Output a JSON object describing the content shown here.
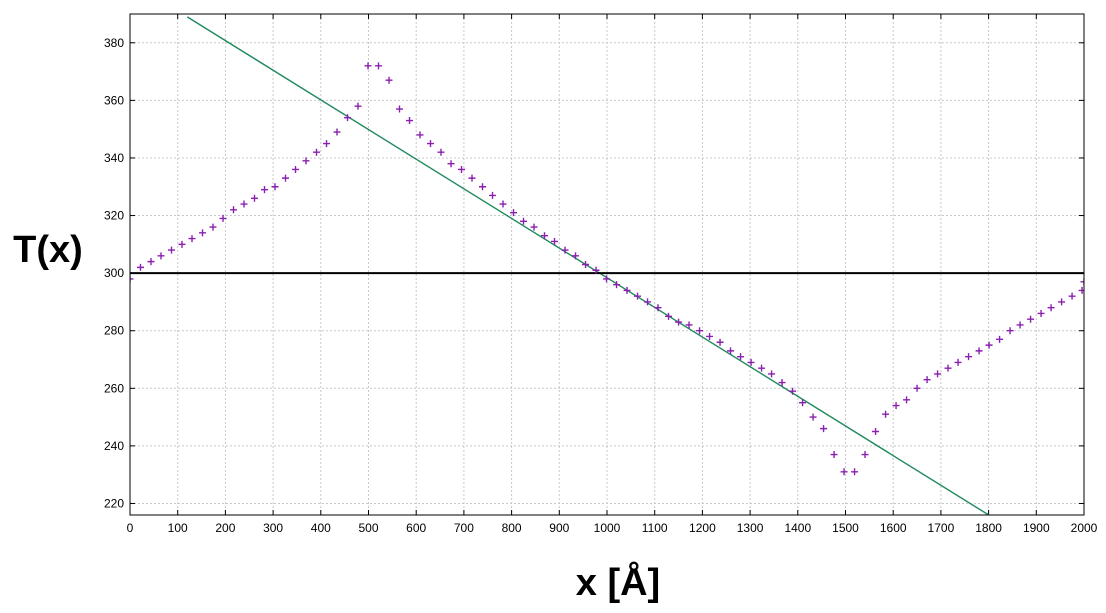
{
  "chart_data": {
    "type": "scatter",
    "title": "",
    "xlabel": "x [Å]",
    "ylabel": "T(x)",
    "xlim": [
      0,
      2000
    ],
    "ylim": [
      216,
      390
    ],
    "grid": true,
    "x_ticks": [
      0,
      100,
      200,
      300,
      400,
      500,
      600,
      700,
      800,
      900,
      1000,
      1100,
      1200,
      1300,
      1400,
      1500,
      1600,
      1700,
      1800,
      1900,
      2000
    ],
    "y_ticks": [
      220,
      240,
      260,
      280,
      300,
      320,
      340,
      360,
      380
    ],
    "series": [
      {
        "marker": "+",
        "color": "#8b1fb0",
        "points": [
          [
            0,
            298
          ],
          [
            22,
            302
          ],
          [
            44,
            304
          ],
          [
            65,
            306
          ],
          [
            87,
            308
          ],
          [
            109,
            310
          ],
          [
            130,
            312
          ],
          [
            152,
            314
          ],
          [
            174,
            316
          ],
          [
            195,
            319
          ],
          [
            217,
            322
          ],
          [
            239,
            324
          ],
          [
            261,
            326
          ],
          [
            282,
            329
          ],
          [
            304,
            330
          ],
          [
            326,
            333
          ],
          [
            347,
            336
          ],
          [
            369,
            339
          ],
          [
            391,
            342
          ],
          [
            412,
            345
          ],
          [
            434,
            349
          ],
          [
            456,
            354
          ],
          [
            478,
            358
          ],
          [
            499,
            372
          ],
          [
            521,
            372
          ],
          [
            543,
            367
          ],
          [
            565,
            357
          ],
          [
            586,
            353
          ],
          [
            608,
            348
          ],
          [
            630,
            345
          ],
          [
            652,
            342
          ],
          [
            673,
            338
          ],
          [
            695,
            336
          ],
          [
            717,
            333
          ],
          [
            739,
            330
          ],
          [
            760,
            327
          ],
          [
            782,
            324
          ],
          [
            804,
            321
          ],
          [
            825,
            318
          ],
          [
            847,
            316
          ],
          [
            869,
            313
          ],
          [
            890,
            311
          ],
          [
            912,
            308
          ],
          [
            934,
            306
          ],
          [
            955,
            303
          ],
          [
            977,
            301
          ],
          [
            999,
            298
          ],
          [
            1020,
            296
          ],
          [
            1042,
            294
          ],
          [
            1064,
            292
          ],
          [
            1085,
            290
          ],
          [
            1107,
            288
          ],
          [
            1129,
            285
          ],
          [
            1150,
            283
          ],
          [
            1172,
            282
          ],
          [
            1194,
            280
          ],
          [
            1215,
            278
          ],
          [
            1237,
            276
          ],
          [
            1259,
            273
          ],
          [
            1280,
            271
          ],
          [
            1302,
            269
          ],
          [
            1324,
            267
          ],
          [
            1345,
            265
          ],
          [
            1367,
            262
          ],
          [
            1389,
            259
          ],
          [
            1410,
            255
          ],
          [
            1432,
            250
          ],
          [
            1454,
            246
          ],
          [
            1476,
            237
          ],
          [
            1497,
            231
          ],
          [
            1519,
            231
          ],
          [
            1541,
            237
          ],
          [
            1563,
            245
          ],
          [
            1584,
            251
          ],
          [
            1606,
            254
          ],
          [
            1628,
            256
          ],
          [
            1650,
            260
          ],
          [
            1671,
            263
          ],
          [
            1693,
            265
          ],
          [
            1715,
            267
          ],
          [
            1736,
            269
          ],
          [
            1758,
            271
          ],
          [
            1780,
            273
          ],
          [
            1801,
            275
          ],
          [
            1823,
            277
          ],
          [
            1845,
            280
          ],
          [
            1866,
            282
          ],
          [
            1888,
            284
          ],
          [
            1910,
            286
          ],
          [
            1931,
            288
          ],
          [
            1953,
            290
          ],
          [
            1975,
            292
          ],
          [
            1996,
            294
          ],
          [
            2000,
            297
          ]
        ]
      }
    ],
    "lines": [
      {
        "kind": "fit",
        "color": "#1f8a5c",
        "x": [
          120,
          1810
        ],
        "y": [
          389,
          215
        ]
      },
      {
        "kind": "horizontal",
        "color": "#000000",
        "y": 300
      }
    ]
  }
}
